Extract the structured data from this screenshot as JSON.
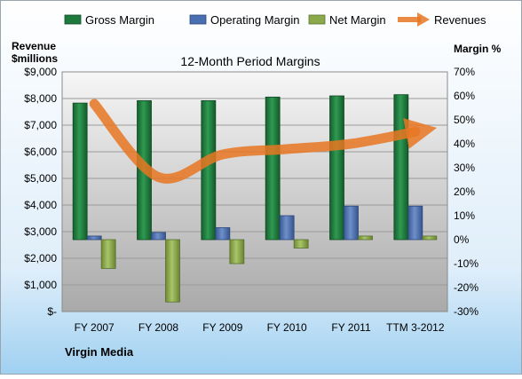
{
  "chart_data": {
    "type": "bar",
    "title": "12-Month Period Margins",
    "company": "Virgin Media",
    "left_axis": {
      "title_line1": "Revenue",
      "title_line2": "$millions",
      "ylim": [
        0,
        9000
      ],
      "ticks": [
        {
          "value": 0,
          "label": "$-"
        },
        {
          "value": 1000,
          "label": "$1,000"
        },
        {
          "value": 2000,
          "label": "$2,000"
        },
        {
          "value": 3000,
          "label": "$3,000"
        },
        {
          "value": 4000,
          "label": "$4,000"
        },
        {
          "value": 5000,
          "label": "$5,000"
        },
        {
          "value": 6000,
          "label": "$6,000"
        },
        {
          "value": 7000,
          "label": "$7,000"
        },
        {
          "value": 8000,
          "label": "$8,000"
        },
        {
          "value": 9000,
          "label": "$9,000"
        }
      ]
    },
    "right_axis": {
      "title": "Margin %",
      "ylim": [
        -30,
        70
      ],
      "ticks": [
        {
          "value": -30,
          "label": "-30%"
        },
        {
          "value": -20,
          "label": "-20%"
        },
        {
          "value": -10,
          "label": "-10%"
        },
        {
          "value": 0,
          "label": "0%"
        },
        {
          "value": 10,
          "label": "10%"
        },
        {
          "value": 20,
          "label": "20%"
        },
        {
          "value": 30,
          "label": "30%"
        },
        {
          "value": 40,
          "label": "40%"
        },
        {
          "value": 50,
          "label": "50%"
        },
        {
          "value": 60,
          "label": "60%"
        },
        {
          "value": 70,
          "label": "70%"
        }
      ]
    },
    "categories": [
      "FY 2007",
      "FY 2008",
      "FY 2009",
      "FY 2010",
      "FY 2011",
      "TTM 3-2012"
    ],
    "series": [
      {
        "name": "Gross Margin",
        "axis": "right",
        "kind": "bar",
        "color": "#1e7a3c",
        "values": [
          57,
          58,
          58,
          59.5,
          60,
          60.5
        ]
      },
      {
        "name": "Operating Margin",
        "axis": "right",
        "kind": "bar",
        "color": "#4a6fb0",
        "values": [
          1.5,
          3,
          5,
          10,
          14,
          14
        ]
      },
      {
        "name": "Net Margin",
        "axis": "right",
        "kind": "bar",
        "color": "#8ba84a",
        "values": [
          -12,
          -26,
          -10,
          -3.5,
          1.5,
          1.5
        ]
      },
      {
        "name": "Revenues",
        "axis": "left",
        "kind": "line",
        "color": "#e87722",
        "values": [
          7800,
          5050,
          5900,
          6100,
          6300,
          6750
        ]
      }
    ],
    "grid": true,
    "legend": "top"
  }
}
